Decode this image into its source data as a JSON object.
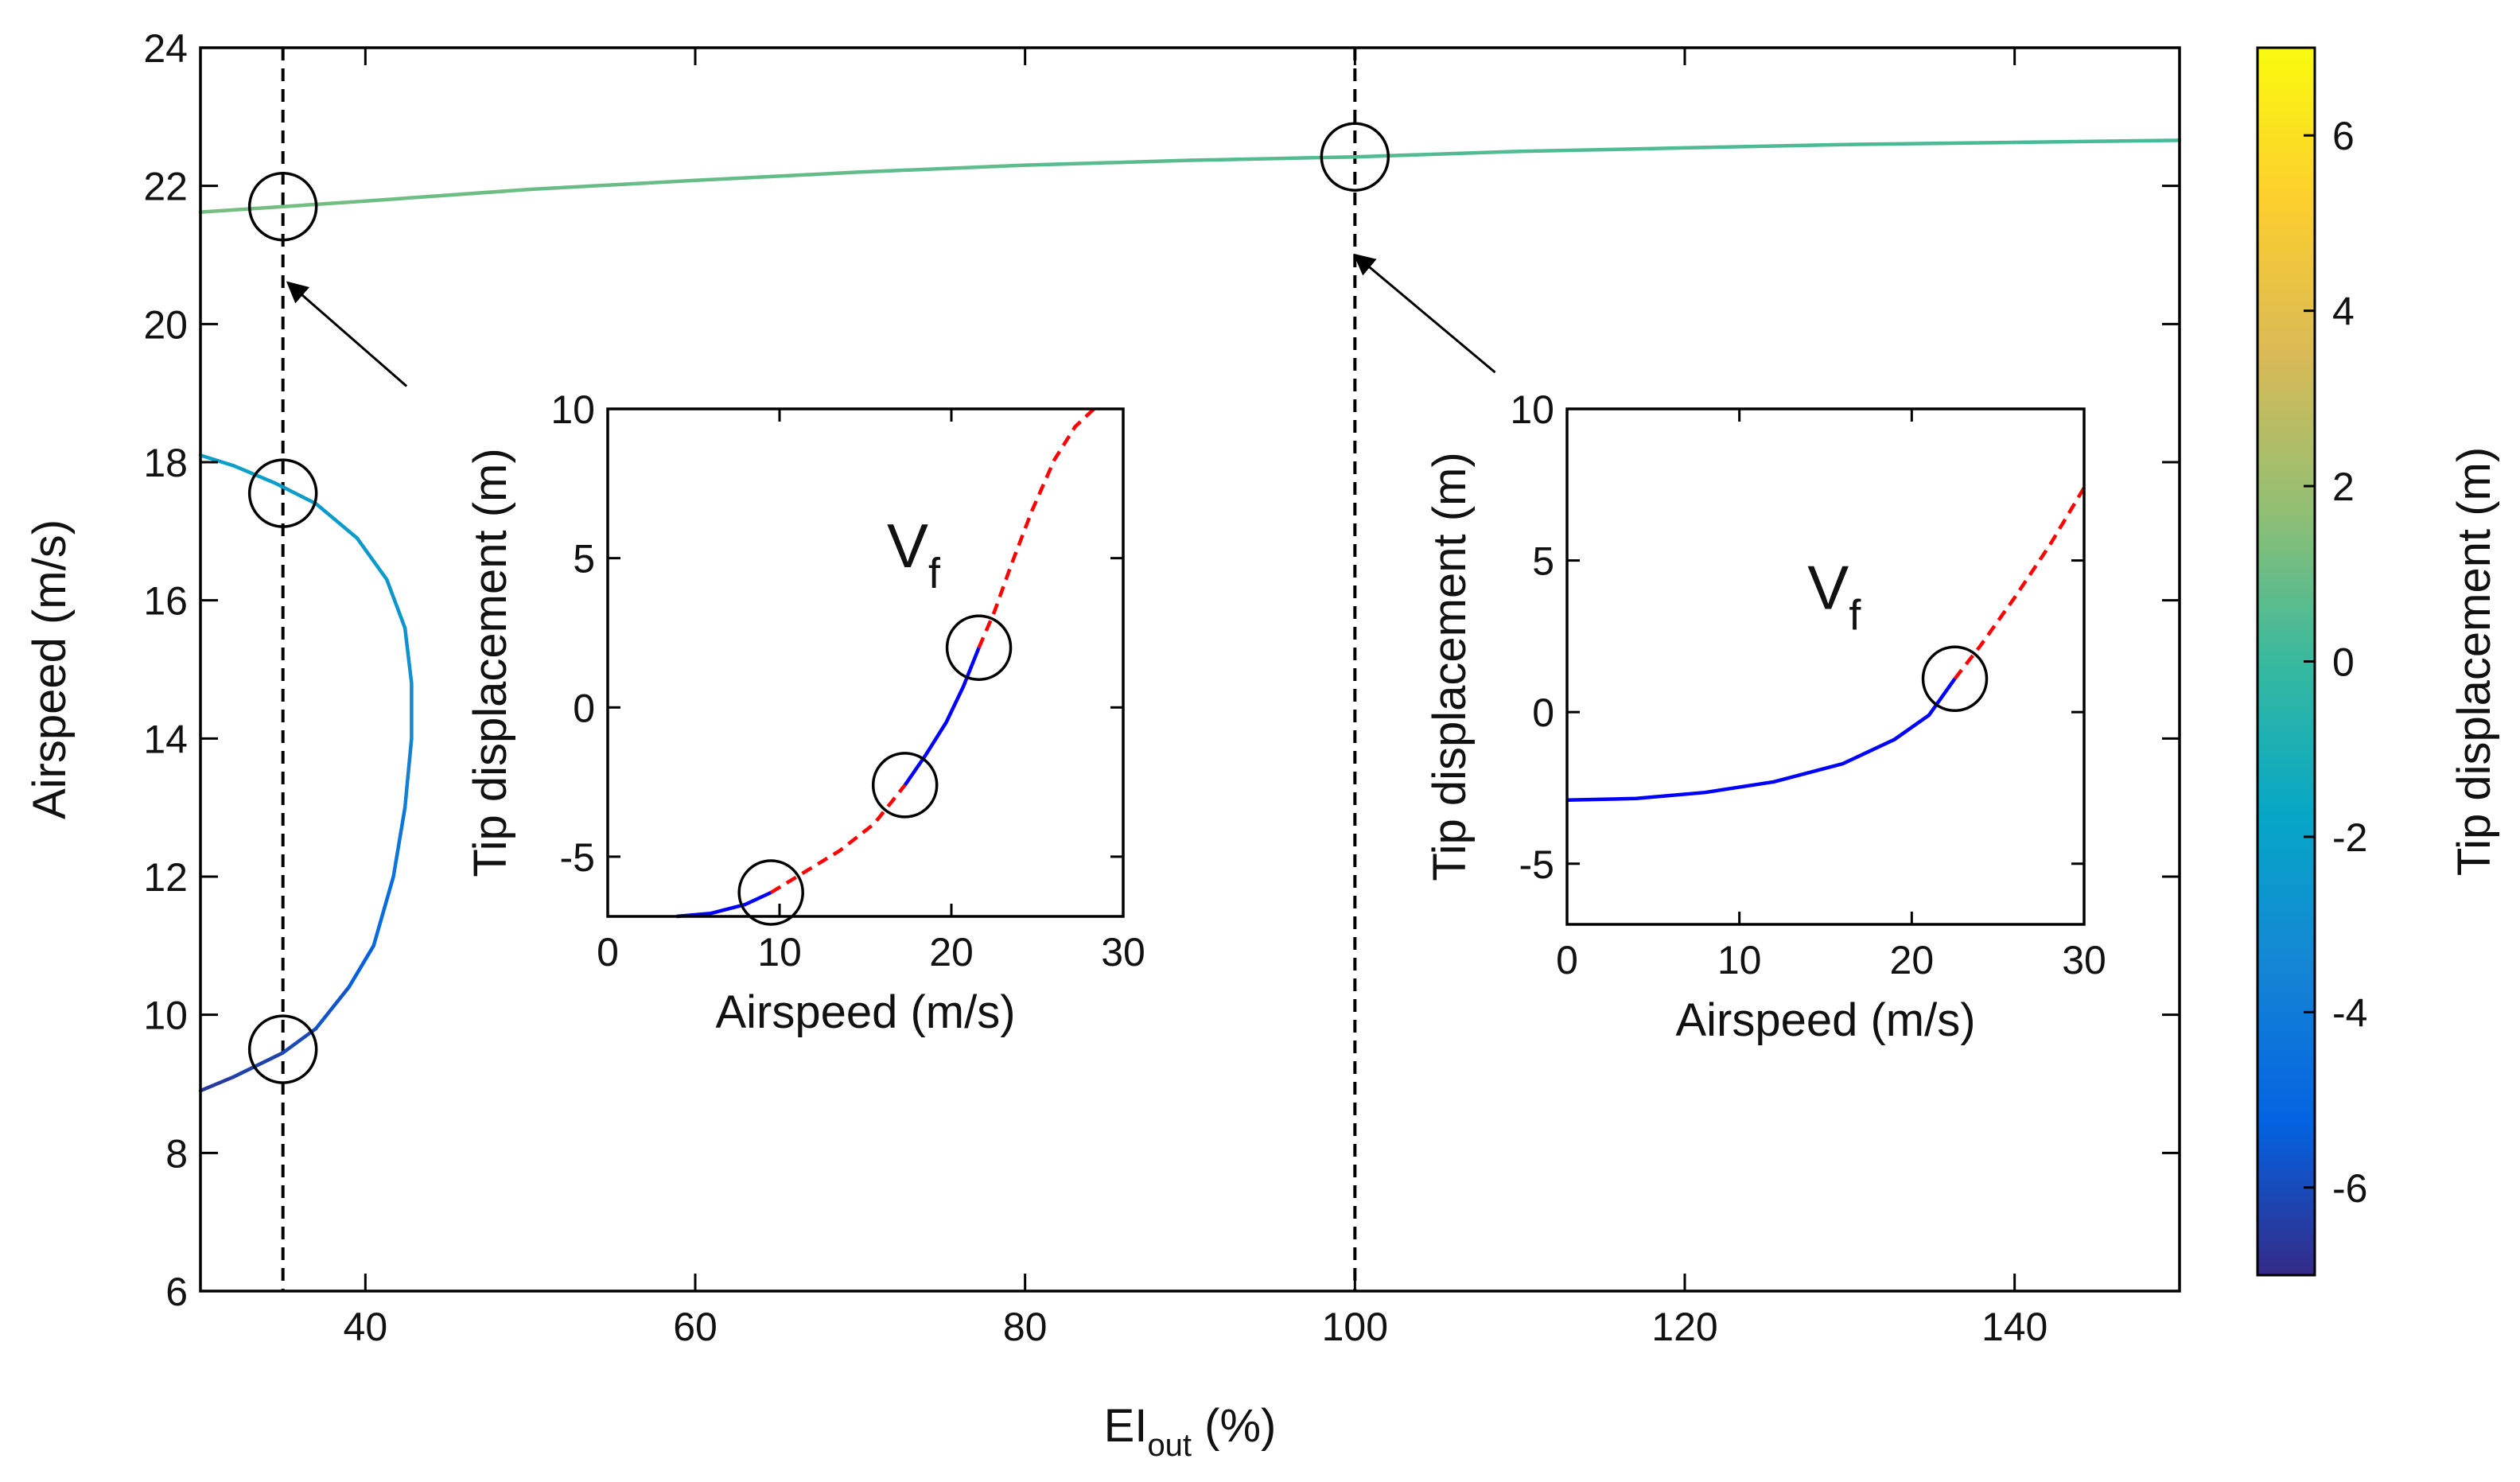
{
  "chart_data": [
    {
      "type": "line",
      "role": "main",
      "xlabel_main": "EI",
      "xlabel_sub": "out",
      "xlabel_unit": " (%)",
      "ylabel": "Airspeed (m/s)",
      "xlim": [
        30,
        150
      ],
      "ylim": [
        6,
        24
      ],
      "xticks": [
        40,
        60,
        80,
        100,
        120,
        140
      ],
      "yticks": [
        6,
        8,
        10,
        12,
        14,
        16,
        18,
        20,
        22,
        24
      ],
      "grid": false,
      "series": [
        {
          "colored_by": "tip_displacement",
          "points": [
            [
              30,
              21.62,
              1.2
            ],
            [
              35,
              21.7,
              1.2
            ],
            [
              40,
              21.78,
              1.1
            ],
            [
              50,
              21.95,
              1.0
            ],
            [
              60,
              22.08,
              0.9
            ],
            [
              70,
              22.2,
              0.8
            ],
            [
              80,
              22.3,
              0.7
            ],
            [
              90,
              22.37,
              0.6
            ],
            [
              100,
              22.42,
              0.5
            ],
            [
              110,
              22.5,
              0.5
            ],
            [
              120,
              22.55,
              0.4
            ],
            [
              130,
              22.6,
              0.4
            ],
            [
              140,
              22.63,
              0.3
            ],
            [
              150,
              22.66,
              0.3
            ]
          ]
        },
        {
          "colored_by": "tip_displacement",
          "points": [
            [
              30,
              8.9,
              -6.6
            ],
            [
              32,
              9.1,
              -6.4
            ],
            [
              35,
              9.45,
              -6.2
            ],
            [
              37,
              9.8,
              -5.9
            ],
            [
              39,
              10.4,
              -5.5
            ],
            [
              40.5,
              11.0,
              -5.1
            ],
            [
              41.7,
              12.0,
              -4.5
            ],
            [
              42.4,
              13.0,
              -4.0
            ],
            [
              42.8,
              14.0,
              -3.4
            ],
            [
              42.8,
              14.8,
              -3.0
            ],
            [
              42.4,
              15.6,
              -2.7
            ],
            [
              41.3,
              16.3,
              -2.5
            ],
            [
              39.5,
              16.9,
              -2.4
            ],
            [
              37.0,
              17.4,
              -2.3
            ],
            [
              34.5,
              17.7,
              -2.2
            ],
            [
              32.0,
              17.95,
              -2.1
            ],
            [
              30,
              18.1,
              -2.1
            ]
          ]
        }
      ],
      "vertical_lines": [
        35,
        100
      ],
      "circles": [
        [
          35,
          21.7
        ],
        [
          35,
          17.55
        ],
        [
          35,
          9.5
        ],
        [
          100,
          22.42
        ]
      ],
      "arrows": [
        {
          "from": [
            42.5,
            19.1
          ],
          "to": [
            35.3,
            20.6
          ]
        },
        {
          "from": [
            108.5,
            19.3
          ],
          "to": [
            100,
            21.0
          ]
        }
      ],
      "colorbar": {
        "label": "Tip displacement (m)",
        "lim": [
          -7,
          7
        ],
        "ticks": [
          -6,
          -4,
          -2,
          0,
          2,
          4,
          6
        ],
        "colors": [
          "#352a87",
          "#0363e1",
          "#1485d4",
          "#06a7c6",
          "#38b99e",
          "#92bf73",
          "#d9ba56",
          "#fcce2e",
          "#f9fb0e"
        ]
      }
    },
    {
      "type": "line",
      "role": "inset-left",
      "xlabel": "Airspeed (m/s)",
      "ylabel": "Tip displacement (m)",
      "xlim": [
        0,
        30
      ],
      "ylim": [
        -7,
        10
      ],
      "xticks": [
        0,
        10,
        20,
        30
      ],
      "yticks": [
        -5,
        0,
        5,
        10
      ],
      "annotation": "V",
      "annotation_sub": "f",
      "annotation_at": [
        17.8,
        4.7
      ],
      "stable_color": "#0000ff",
      "unstable_color": "#ff0000",
      "segments": [
        {
          "stable": true,
          "points": [
            [
              4.0,
              -7.0
            ],
            [
              6.0,
              -6.9
            ],
            [
              8.0,
              -6.6
            ],
            [
              9.5,
              -6.2
            ]
          ]
        },
        {
          "stable": false,
          "points": [
            [
              9.5,
              -6.2
            ],
            [
              11.5,
              -5.5
            ],
            [
              13.5,
              -4.8
            ],
            [
              15.5,
              -3.9
            ],
            [
              17.3,
              -2.6
            ]
          ]
        },
        {
          "stable": true,
          "points": [
            [
              17.3,
              -2.6
            ],
            [
              18.5,
              -1.6
            ],
            [
              19.7,
              -0.5
            ],
            [
              20.7,
              0.7
            ],
            [
              21.6,
              2.0
            ]
          ]
        },
        {
          "stable": false,
          "points": [
            [
              21.6,
              2.0
            ],
            [
              22.5,
              3.2
            ],
            [
              23.5,
              4.8
            ],
            [
              24.7,
              6.6
            ],
            [
              26.0,
              8.3
            ],
            [
              27.2,
              9.4
            ],
            [
              28.3,
              10.0
            ]
          ]
        }
      ],
      "circles": [
        [
          9.5,
          -6.2
        ],
        [
          17.3,
          -2.6
        ],
        [
          21.6,
          2.0
        ]
      ]
    },
    {
      "type": "line",
      "role": "inset-right",
      "xlabel": "Airspeed (m/s)",
      "ylabel": "Tip displacement (m)",
      "xlim": [
        0,
        30
      ],
      "ylim": [
        -7,
        10
      ],
      "xticks": [
        0,
        10,
        20,
        30
      ],
      "yticks": [
        -5,
        0,
        5,
        10
      ],
      "annotation": "V",
      "annotation_sub": "f",
      "annotation_at": [
        15.5,
        3.4
      ],
      "stable_color": "#0000ff",
      "unstable_color": "#ff0000",
      "segments": [
        {
          "stable": true,
          "points": [
            [
              0,
              -2.9
            ],
            [
              4,
              -2.85
            ],
            [
              8,
              -2.65
            ],
            [
              12,
              -2.3
            ],
            [
              16,
              -1.7
            ],
            [
              19,
              -0.9
            ],
            [
              21,
              -0.1
            ],
            [
              22.5,
              1.1
            ]
          ]
        },
        {
          "stable": false,
          "points": [
            [
              22.5,
              1.1
            ],
            [
              24,
              2.2
            ],
            [
              26,
              3.8
            ],
            [
              28,
              5.5
            ],
            [
              30,
              7.4
            ]
          ]
        }
      ],
      "circles": [
        [
          22.5,
          1.1
        ]
      ]
    }
  ]
}
